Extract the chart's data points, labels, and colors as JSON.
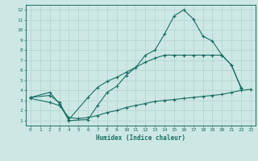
{
  "xlabel": "Humidex (Indice chaleur)",
  "bg_color": "#cde8e4",
  "grid_color": "#b8d8d4",
  "line_color": "#1a6e64",
  "xlim": [
    -0.5,
    23.5
  ],
  "ylim": [
    0.5,
    12.5
  ],
  "xticks": [
    0,
    1,
    2,
    3,
    4,
    5,
    6,
    7,
    8,
    9,
    10,
    11,
    12,
    13,
    14,
    15,
    16,
    17,
    18,
    19,
    20,
    21,
    22,
    23
  ],
  "yticks": [
    1,
    2,
    3,
    4,
    5,
    6,
    7,
    8,
    9,
    10,
    11,
    12
  ],
  "line1_x": [
    0,
    2,
    3,
    4,
    6,
    7,
    8,
    9,
    10,
    11,
    12,
    13,
    14,
    15,
    16,
    17,
    18,
    19,
    20,
    21,
    22
  ],
  "line1_y": [
    3.3,
    3.8,
    2.7,
    1.0,
    1.1,
    2.5,
    3.8,
    4.4,
    5.5,
    6.3,
    7.5,
    8.0,
    9.6,
    11.4,
    12.0,
    11.1,
    9.4,
    8.9,
    7.5,
    6.5,
    4.3
  ],
  "line2_x": [
    0,
    2,
    3,
    4,
    6,
    7,
    8,
    9,
    10,
    11,
    12,
    13,
    14,
    15,
    16,
    17,
    18,
    19,
    20,
    21,
    22
  ],
  "line2_y": [
    3.3,
    3.5,
    2.8,
    1.1,
    3.3,
    4.3,
    4.9,
    5.3,
    5.8,
    6.3,
    6.8,
    7.2,
    7.5,
    7.5,
    7.5,
    7.5,
    7.5,
    7.5,
    7.5,
    6.5,
    4.2
  ],
  "line3_x": [
    0,
    2,
    3,
    4,
    5,
    6,
    7,
    8,
    9,
    10,
    11,
    12,
    13,
    14,
    15,
    16,
    17,
    18,
    19,
    20,
    21,
    22,
    23
  ],
  "line3_y": [
    3.2,
    2.8,
    2.5,
    1.3,
    1.2,
    1.3,
    1.5,
    1.8,
    2.0,
    2.3,
    2.5,
    2.7,
    2.9,
    3.0,
    3.1,
    3.2,
    3.3,
    3.4,
    3.5,
    3.6,
    3.8,
    4.0,
    4.1
  ]
}
